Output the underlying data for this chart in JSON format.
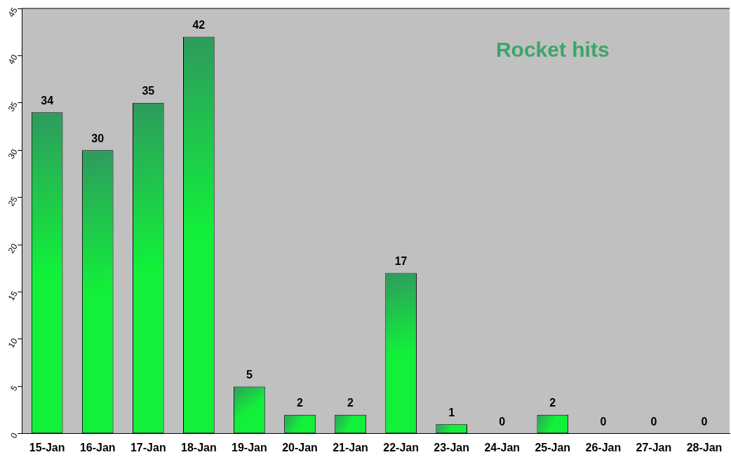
{
  "chart_data": {
    "type": "bar",
    "title": "Rocket hits",
    "categories": [
      "15-Jan",
      "16-Jan",
      "17-Jan",
      "18-Jan",
      "19-Jan",
      "20-Jan",
      "21-Jan",
      "22-Jan",
      "23-Jan",
      "24-Jan",
      "25-Jan",
      "26-Jan",
      "27-Jan",
      "28-Jan"
    ],
    "values": [
      34,
      30,
      35,
      42,
      5,
      2,
      2,
      17,
      1,
      0,
      2,
      0,
      0,
      0
    ],
    "color": "#12f03a",
    "ylim": [
      0,
      45
    ],
    "yticks": [
      0,
      5,
      10,
      15,
      20,
      25,
      30,
      35,
      40,
      45
    ],
    "grid": false,
    "legend": false,
    "data_labels": true
  }
}
